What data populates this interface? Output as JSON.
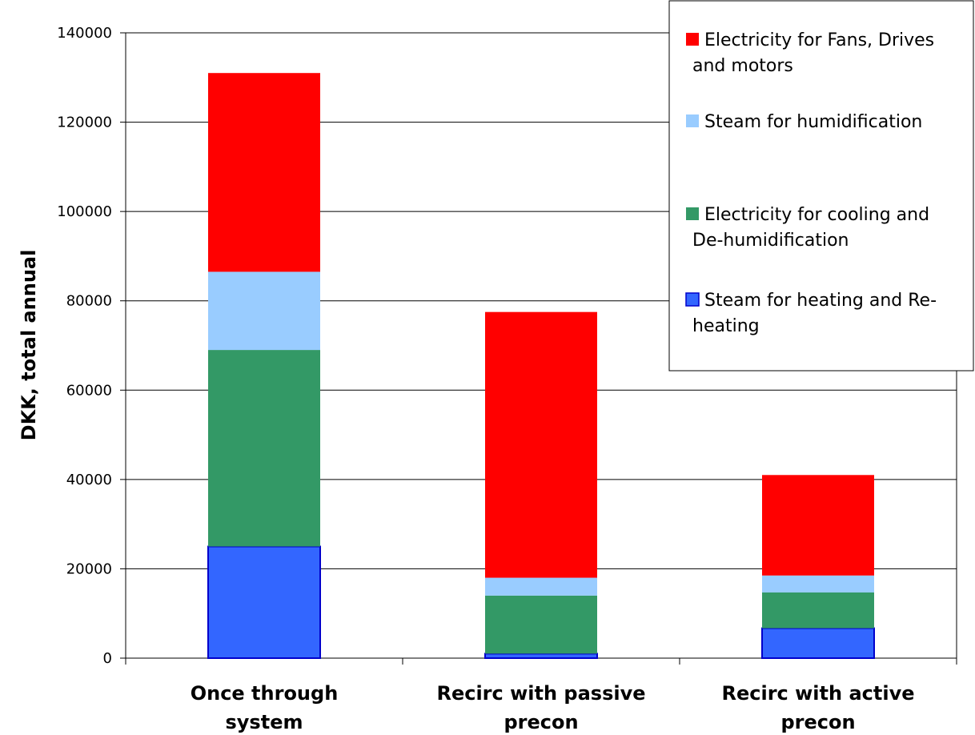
{
  "chart_data": {
    "type": "bar",
    "stacked": true,
    "categories": [
      [
        "Once through",
        "system"
      ],
      [
        "Recirc with passive",
        "precon"
      ],
      [
        "Recirc with active",
        "precon"
      ]
    ],
    "ylabel": "DKK, total annual",
    "xlabel": "",
    "ylim": [
      0,
      140000
    ],
    "yticks": [
      0,
      20000,
      40000,
      60000,
      80000,
      100000,
      120000,
      140000
    ],
    "grid": true,
    "legend_position": "top-right",
    "series": [
      {
        "name": "Steam for heating and Re-heating",
        "legend_lines": [
          "Steam for heating and Re-",
          "heating"
        ],
        "color": "#3366FF",
        "outline": "#0000CC",
        "values": [
          25000,
          1000,
          6700
        ]
      },
      {
        "name": "Electricity for cooling and De-humidification",
        "legend_lines": [
          "Electricity for cooling and",
          "De-humidification"
        ],
        "color": "#339966",
        "values": [
          44000,
          13000,
          8000
        ]
      },
      {
        "name": "Steam for humidification",
        "legend_lines": [
          "Steam for humidification"
        ],
        "color": "#99CCFF",
        "values": [
          17500,
          4000,
          3800
        ]
      },
      {
        "name": "Electricity for Fans, Drives and motors",
        "legend_lines": [
          "Electricity for Fans, Drives",
          "and motors"
        ],
        "color": "#FF0000",
        "values": [
          44500,
          59500,
          22500
        ]
      }
    ]
  }
}
